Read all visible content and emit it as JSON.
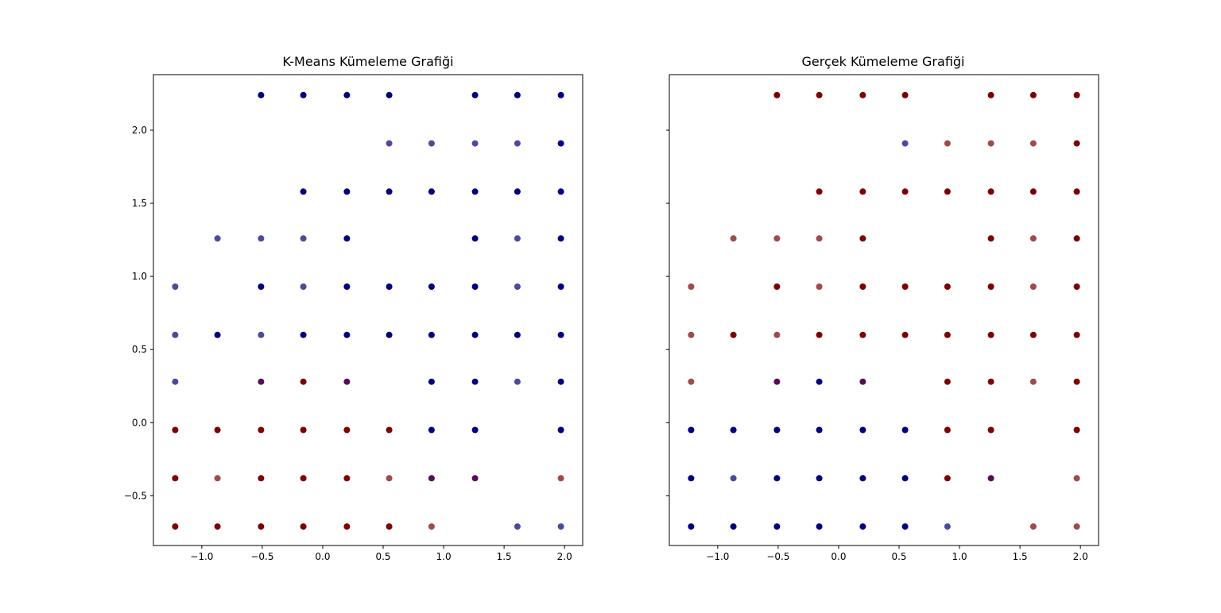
{
  "colors": {
    "cluster_0": "#000080",
    "cluster_1": "#800000",
    "mixed_blue": "#4a4aa0",
    "mixed_red": "#a04a4a",
    "mixed_purple": "#5a0a5a"
  },
  "chart_data": [
    {
      "type": "scatter",
      "title": "K-Means Kümeleme Grafiği",
      "xlabel": "",
      "ylabel": "",
      "xlim": [
        -1.4,
        2.15
      ],
      "ylim": [
        -0.84,
        2.38
      ],
      "grid": false,
      "legend": "none",
      "xticks": [
        {
          "v": -1.0,
          "label": "−1.0"
        },
        {
          "v": -0.5,
          "label": "−0.5"
        },
        {
          "v": 0.0,
          "label": "0.0"
        },
        {
          "v": 0.5,
          "label": "0.5"
        },
        {
          "v": 1.0,
          "label": "1.0"
        },
        {
          "v": 1.5,
          "label": "1.5"
        },
        {
          "v": 2.0,
          "label": "2.0"
        }
      ],
      "yticks": [
        {
          "v": -0.5,
          "label": "−0.5"
        },
        {
          "v": 0.0,
          "label": "0.0"
        },
        {
          "v": 0.5,
          "label": "0.5"
        },
        {
          "v": 1.0,
          "label": "1.0"
        },
        {
          "v": 1.5,
          "label": "1.5"
        },
        {
          "v": 2.0,
          "label": "2.0"
        }
      ],
      "show_ytick_labels": true,
      "points": [
        {
          "x": -0.51,
          "y": 2.24,
          "c": "cluster_0"
        },
        {
          "x": -0.16,
          "y": 2.24,
          "c": "cluster_0"
        },
        {
          "x": 0.2,
          "y": 2.24,
          "c": "cluster_0"
        },
        {
          "x": 0.55,
          "y": 2.24,
          "c": "cluster_0"
        },
        {
          "x": 1.26,
          "y": 2.24,
          "c": "cluster_0"
        },
        {
          "x": 1.61,
          "y": 2.24,
          "c": "cluster_0"
        },
        {
          "x": 1.97,
          "y": 2.24,
          "c": "cluster_0"
        },
        {
          "x": 0.55,
          "y": 1.91,
          "c": "mixed_blue"
        },
        {
          "x": 0.9,
          "y": 1.91,
          "c": "mixed_blue"
        },
        {
          "x": 1.26,
          "y": 1.91,
          "c": "mixed_blue"
        },
        {
          "x": 1.61,
          "y": 1.91,
          "c": "mixed_blue"
        },
        {
          "x": 1.97,
          "y": 1.91,
          "c": "cluster_0"
        },
        {
          "x": -0.16,
          "y": 1.58,
          "c": "cluster_0"
        },
        {
          "x": 0.2,
          "y": 1.58,
          "c": "cluster_0"
        },
        {
          "x": 0.55,
          "y": 1.58,
          "c": "cluster_0"
        },
        {
          "x": 0.9,
          "y": 1.58,
          "c": "cluster_0"
        },
        {
          "x": 1.26,
          "y": 1.58,
          "c": "cluster_0"
        },
        {
          "x": 1.61,
          "y": 1.58,
          "c": "cluster_0"
        },
        {
          "x": 1.97,
          "y": 1.58,
          "c": "cluster_0"
        },
        {
          "x": -0.87,
          "y": 1.26,
          "c": "mixed_blue"
        },
        {
          "x": -0.51,
          "y": 1.26,
          "c": "mixed_blue"
        },
        {
          "x": -0.16,
          "y": 1.26,
          "c": "mixed_blue"
        },
        {
          "x": 0.2,
          "y": 1.26,
          "c": "cluster_0"
        },
        {
          "x": 1.26,
          "y": 1.26,
          "c": "cluster_0"
        },
        {
          "x": 1.61,
          "y": 1.26,
          "c": "mixed_blue"
        },
        {
          "x": 1.97,
          "y": 1.26,
          "c": "cluster_0"
        },
        {
          "x": -1.22,
          "y": 0.93,
          "c": "mixed_blue"
        },
        {
          "x": -0.51,
          "y": 0.93,
          "c": "cluster_0"
        },
        {
          "x": -0.16,
          "y": 0.93,
          "c": "mixed_blue"
        },
        {
          "x": 0.2,
          "y": 0.93,
          "c": "cluster_0"
        },
        {
          "x": 0.55,
          "y": 0.93,
          "c": "cluster_0"
        },
        {
          "x": 0.9,
          "y": 0.93,
          "c": "cluster_0"
        },
        {
          "x": 1.26,
          "y": 0.93,
          "c": "cluster_0"
        },
        {
          "x": 1.61,
          "y": 0.93,
          "c": "mixed_blue"
        },
        {
          "x": 1.97,
          "y": 0.93,
          "c": "cluster_0"
        },
        {
          "x": -1.22,
          "y": 0.6,
          "c": "mixed_blue"
        },
        {
          "x": -0.87,
          "y": 0.6,
          "c": "cluster_0"
        },
        {
          "x": -0.51,
          "y": 0.6,
          "c": "mixed_blue"
        },
        {
          "x": -0.16,
          "y": 0.6,
          "c": "cluster_0"
        },
        {
          "x": 0.2,
          "y": 0.6,
          "c": "cluster_0"
        },
        {
          "x": 0.55,
          "y": 0.6,
          "c": "cluster_0"
        },
        {
          "x": 0.9,
          "y": 0.6,
          "c": "cluster_0"
        },
        {
          "x": 1.26,
          "y": 0.6,
          "c": "cluster_0"
        },
        {
          "x": 1.61,
          "y": 0.6,
          "c": "cluster_0"
        },
        {
          "x": 1.97,
          "y": 0.6,
          "c": "cluster_0"
        },
        {
          "x": -1.22,
          "y": 0.28,
          "c": "mixed_blue"
        },
        {
          "x": -0.51,
          "y": 0.28,
          "c": "mixed_purple"
        },
        {
          "x": -0.16,
          "y": 0.28,
          "c": "cluster_1"
        },
        {
          "x": 0.2,
          "y": 0.28,
          "c": "mixed_purple"
        },
        {
          "x": 0.9,
          "y": 0.28,
          "c": "cluster_0"
        },
        {
          "x": 1.26,
          "y": 0.28,
          "c": "cluster_0"
        },
        {
          "x": 1.61,
          "y": 0.28,
          "c": "mixed_blue"
        },
        {
          "x": 1.97,
          "y": 0.28,
          "c": "cluster_0"
        },
        {
          "x": -1.22,
          "y": -0.05,
          "c": "cluster_1"
        },
        {
          "x": -0.87,
          "y": -0.05,
          "c": "cluster_1"
        },
        {
          "x": -0.51,
          "y": -0.05,
          "c": "cluster_1"
        },
        {
          "x": -0.16,
          "y": -0.05,
          "c": "cluster_1"
        },
        {
          "x": 0.2,
          "y": -0.05,
          "c": "cluster_1"
        },
        {
          "x": 0.55,
          "y": -0.05,
          "c": "cluster_1"
        },
        {
          "x": 0.9,
          "y": -0.05,
          "c": "cluster_0"
        },
        {
          "x": 1.26,
          "y": -0.05,
          "c": "cluster_0"
        },
        {
          "x": 1.97,
          "y": -0.05,
          "c": "cluster_0"
        },
        {
          "x": -1.22,
          "y": -0.38,
          "c": "cluster_1"
        },
        {
          "x": -0.87,
          "y": -0.38,
          "c": "mixed_red"
        },
        {
          "x": -0.51,
          "y": -0.38,
          "c": "cluster_1"
        },
        {
          "x": -0.16,
          "y": -0.38,
          "c": "cluster_1"
        },
        {
          "x": 0.2,
          "y": -0.38,
          "c": "cluster_1"
        },
        {
          "x": 0.55,
          "y": -0.38,
          "c": "mixed_red"
        },
        {
          "x": 0.9,
          "y": -0.38,
          "c": "mixed_purple"
        },
        {
          "x": 1.26,
          "y": -0.38,
          "c": "mixed_purple"
        },
        {
          "x": 1.97,
          "y": -0.38,
          "c": "mixed_red"
        },
        {
          "x": -1.22,
          "y": -0.71,
          "c": "cluster_1"
        },
        {
          "x": -0.87,
          "y": -0.71,
          "c": "cluster_1"
        },
        {
          "x": -0.51,
          "y": -0.71,
          "c": "cluster_1"
        },
        {
          "x": -0.16,
          "y": -0.71,
          "c": "cluster_1"
        },
        {
          "x": 0.2,
          "y": -0.71,
          "c": "cluster_1"
        },
        {
          "x": 0.55,
          "y": -0.71,
          "c": "cluster_1"
        },
        {
          "x": 0.9,
          "y": -0.71,
          "c": "mixed_red"
        },
        {
          "x": 1.61,
          "y": -0.71,
          "c": "mixed_blue"
        },
        {
          "x": 1.97,
          "y": -0.71,
          "c": "mixed_blue"
        }
      ]
    },
    {
      "type": "scatter",
      "title": "Gerçek Kümeleme Grafiği",
      "xlabel": "",
      "ylabel": "",
      "xlim": [
        -1.4,
        2.15
      ],
      "ylim": [
        -0.84,
        2.38
      ],
      "grid": false,
      "legend": "none",
      "xticks": [
        {
          "v": -1.0,
          "label": "−1.0"
        },
        {
          "v": -0.5,
          "label": "−0.5"
        },
        {
          "v": 0.0,
          "label": "0.0"
        },
        {
          "v": 0.5,
          "label": "0.5"
        },
        {
          "v": 1.0,
          "label": "1.0"
        },
        {
          "v": 1.5,
          "label": "1.5"
        },
        {
          "v": 2.0,
          "label": "2.0"
        }
      ],
      "yticks": [
        {
          "v": -0.5,
          "label": ""
        },
        {
          "v": 0.0,
          "label": ""
        },
        {
          "v": 0.5,
          "label": ""
        },
        {
          "v": 1.0,
          "label": ""
        },
        {
          "v": 1.5,
          "label": ""
        },
        {
          "v": 2.0,
          "label": ""
        }
      ],
      "show_ytick_labels": false,
      "points": [
        {
          "x": -0.51,
          "y": 2.24,
          "c": "cluster_1"
        },
        {
          "x": -0.16,
          "y": 2.24,
          "c": "cluster_1"
        },
        {
          "x": 0.2,
          "y": 2.24,
          "c": "cluster_1"
        },
        {
          "x": 0.55,
          "y": 2.24,
          "c": "cluster_1"
        },
        {
          "x": 1.26,
          "y": 2.24,
          "c": "cluster_1"
        },
        {
          "x": 1.61,
          "y": 2.24,
          "c": "cluster_1"
        },
        {
          "x": 1.97,
          "y": 2.24,
          "c": "cluster_1"
        },
        {
          "x": 0.55,
          "y": 1.91,
          "c": "mixed_blue"
        },
        {
          "x": 0.9,
          "y": 1.91,
          "c": "mixed_red"
        },
        {
          "x": 1.26,
          "y": 1.91,
          "c": "mixed_red"
        },
        {
          "x": 1.61,
          "y": 1.91,
          "c": "mixed_red"
        },
        {
          "x": 1.97,
          "y": 1.91,
          "c": "cluster_1"
        },
        {
          "x": -0.16,
          "y": 1.58,
          "c": "cluster_1"
        },
        {
          "x": 0.2,
          "y": 1.58,
          "c": "cluster_1"
        },
        {
          "x": 0.55,
          "y": 1.58,
          "c": "cluster_1"
        },
        {
          "x": 0.9,
          "y": 1.58,
          "c": "cluster_1"
        },
        {
          "x": 1.26,
          "y": 1.58,
          "c": "cluster_1"
        },
        {
          "x": 1.61,
          "y": 1.58,
          "c": "cluster_1"
        },
        {
          "x": 1.97,
          "y": 1.58,
          "c": "cluster_1"
        },
        {
          "x": -0.87,
          "y": 1.26,
          "c": "mixed_red"
        },
        {
          "x": -0.51,
          "y": 1.26,
          "c": "mixed_red"
        },
        {
          "x": -0.16,
          "y": 1.26,
          "c": "mixed_red"
        },
        {
          "x": 0.2,
          "y": 1.26,
          "c": "cluster_1"
        },
        {
          "x": 1.26,
          "y": 1.26,
          "c": "cluster_1"
        },
        {
          "x": 1.61,
          "y": 1.26,
          "c": "mixed_red"
        },
        {
          "x": 1.97,
          "y": 1.26,
          "c": "cluster_1"
        },
        {
          "x": -1.22,
          "y": 0.93,
          "c": "mixed_red"
        },
        {
          "x": -0.51,
          "y": 0.93,
          "c": "cluster_1"
        },
        {
          "x": -0.16,
          "y": 0.93,
          "c": "mixed_red"
        },
        {
          "x": 0.2,
          "y": 0.93,
          "c": "cluster_1"
        },
        {
          "x": 0.55,
          "y": 0.93,
          "c": "cluster_1"
        },
        {
          "x": 0.9,
          "y": 0.93,
          "c": "cluster_1"
        },
        {
          "x": 1.26,
          "y": 0.93,
          "c": "cluster_1"
        },
        {
          "x": 1.61,
          "y": 0.93,
          "c": "mixed_red"
        },
        {
          "x": 1.97,
          "y": 0.93,
          "c": "cluster_1"
        },
        {
          "x": -1.22,
          "y": 0.6,
          "c": "mixed_red"
        },
        {
          "x": -0.87,
          "y": 0.6,
          "c": "cluster_1"
        },
        {
          "x": -0.51,
          "y": 0.6,
          "c": "mixed_red"
        },
        {
          "x": -0.16,
          "y": 0.6,
          "c": "cluster_1"
        },
        {
          "x": 0.2,
          "y": 0.6,
          "c": "cluster_1"
        },
        {
          "x": 0.55,
          "y": 0.6,
          "c": "cluster_1"
        },
        {
          "x": 0.9,
          "y": 0.6,
          "c": "cluster_1"
        },
        {
          "x": 1.26,
          "y": 0.6,
          "c": "cluster_1"
        },
        {
          "x": 1.61,
          "y": 0.6,
          "c": "cluster_1"
        },
        {
          "x": 1.97,
          "y": 0.6,
          "c": "cluster_1"
        },
        {
          "x": -1.22,
          "y": 0.28,
          "c": "mixed_red"
        },
        {
          "x": -0.51,
          "y": 0.28,
          "c": "mixed_purple"
        },
        {
          "x": -0.16,
          "y": 0.28,
          "c": "cluster_0"
        },
        {
          "x": 0.2,
          "y": 0.28,
          "c": "mixed_purple"
        },
        {
          "x": 0.9,
          "y": 0.28,
          "c": "cluster_1"
        },
        {
          "x": 1.26,
          "y": 0.28,
          "c": "cluster_1"
        },
        {
          "x": 1.61,
          "y": 0.28,
          "c": "mixed_red"
        },
        {
          "x": 1.97,
          "y": 0.28,
          "c": "cluster_1"
        },
        {
          "x": -1.22,
          "y": -0.05,
          "c": "cluster_0"
        },
        {
          "x": -0.87,
          "y": -0.05,
          "c": "cluster_0"
        },
        {
          "x": -0.51,
          "y": -0.05,
          "c": "cluster_0"
        },
        {
          "x": -0.16,
          "y": -0.05,
          "c": "cluster_0"
        },
        {
          "x": 0.2,
          "y": -0.05,
          "c": "cluster_0"
        },
        {
          "x": 0.55,
          "y": -0.05,
          "c": "cluster_0"
        },
        {
          "x": 0.9,
          "y": -0.05,
          "c": "cluster_1"
        },
        {
          "x": 1.26,
          "y": -0.05,
          "c": "cluster_1"
        },
        {
          "x": 1.97,
          "y": -0.05,
          "c": "cluster_1"
        },
        {
          "x": -1.22,
          "y": -0.38,
          "c": "cluster_0"
        },
        {
          "x": -0.87,
          "y": -0.38,
          "c": "mixed_blue"
        },
        {
          "x": -0.51,
          "y": -0.38,
          "c": "cluster_0"
        },
        {
          "x": -0.16,
          "y": -0.38,
          "c": "cluster_0"
        },
        {
          "x": 0.2,
          "y": -0.38,
          "c": "cluster_0"
        },
        {
          "x": 0.55,
          "y": -0.38,
          "c": "cluster_0"
        },
        {
          "x": 0.9,
          "y": -0.38,
          "c": "cluster_1"
        },
        {
          "x": 1.26,
          "y": -0.38,
          "c": "mixed_purple"
        },
        {
          "x": 1.97,
          "y": -0.38,
          "c": "mixed_red"
        },
        {
          "x": -1.22,
          "y": -0.71,
          "c": "cluster_0"
        },
        {
          "x": -0.87,
          "y": -0.71,
          "c": "cluster_0"
        },
        {
          "x": -0.51,
          "y": -0.71,
          "c": "cluster_0"
        },
        {
          "x": -0.16,
          "y": -0.71,
          "c": "cluster_0"
        },
        {
          "x": 0.2,
          "y": -0.71,
          "c": "cluster_0"
        },
        {
          "x": 0.55,
          "y": -0.71,
          "c": "cluster_0"
        },
        {
          "x": 0.9,
          "y": -0.71,
          "c": "mixed_blue"
        },
        {
          "x": 1.61,
          "y": -0.71,
          "c": "mixed_red"
        },
        {
          "x": 1.97,
          "y": -0.71,
          "c": "mixed_red"
        }
      ]
    }
  ]
}
